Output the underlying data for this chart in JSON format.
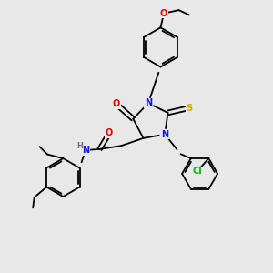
{
  "background_color": "#e8e8e8",
  "colors": {
    "C": "#000000",
    "N": "#1010ff",
    "O": "#ee0000",
    "S": "#ccaa00",
    "Cl": "#00bb00",
    "H": "#707070"
  },
  "fs": 7.0,
  "fs_small": 5.5,
  "lw": 1.3
}
